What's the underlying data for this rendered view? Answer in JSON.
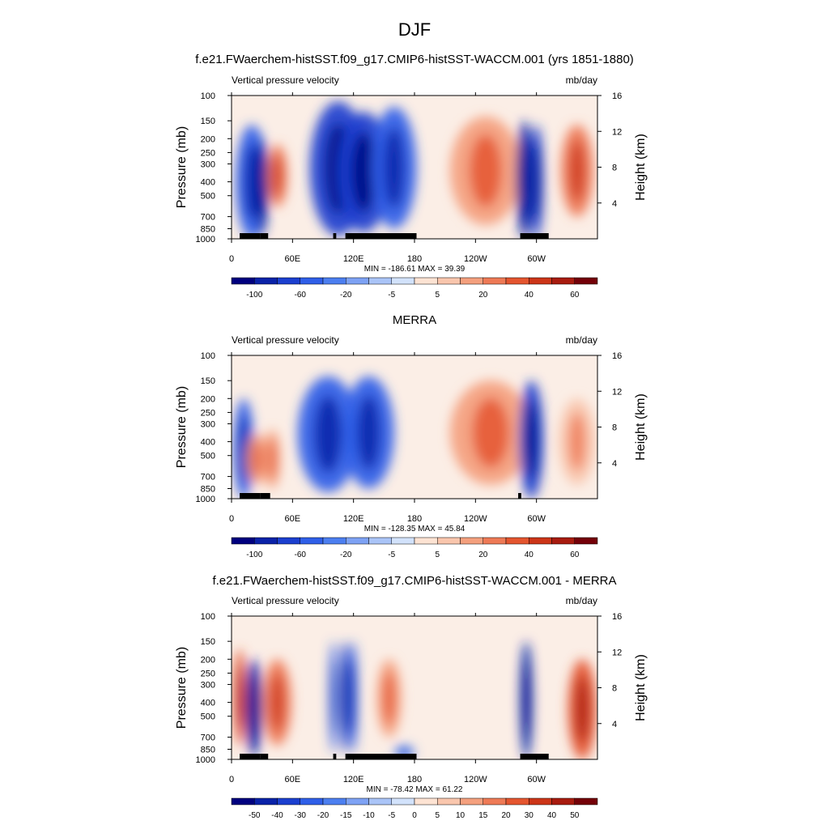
{
  "figure": {
    "title": "DJF"
  },
  "chart_data": [
    {
      "type": "heatmap",
      "title": "f.e21.FWaerchem-histSST.f09_g17.CMIP6-histSST-WACCM.001 (yrs 1851-1880)",
      "left_label": "Vertical pressure velocity",
      "right_label": "mb/day",
      "ylabel": "Pressure (mb)",
      "ylabel_right": "Height (km)",
      "x_ticks": [
        "0",
        "60E",
        "120E",
        "180",
        "120W",
        "60W"
      ],
      "x_tick_values": [
        0,
        60,
        120,
        180,
        240,
        300
      ],
      "xlim": [
        0,
        360
      ],
      "y_ticks": [
        "100",
        "150",
        "200",
        "250",
        "300",
        "400",
        "500",
        "700",
        "850",
        "1000"
      ],
      "y_tick_values": [
        100,
        150,
        200,
        250,
        300,
        400,
        500,
        700,
        850,
        1000
      ],
      "ylim": [
        1000,
        100
      ],
      "height_ticks": [
        "16",
        "12",
        "8",
        "4"
      ],
      "height_tick_values": [
        16,
        12,
        8,
        4
      ],
      "stats": "MIN = -186.61  MAX =  39.39",
      "colorbar_labels": [
        "-100",
        "-60",
        "-20",
        "-5",
        "5",
        "20",
        "40",
        "60"
      ],
      "colorbar_colors": [
        "#00007f",
        "#0a22a8",
        "#1b3fcf",
        "#2f5fe8",
        "#4c7ff0",
        "#7ea2f4",
        "#aac4f7",
        "#d2e2fb",
        "#fde3d3",
        "#f9c6ad",
        "#f4a07e",
        "#ee7a56",
        "#e4552f",
        "#cc3518",
        "#a81b0f",
        "#740008"
      ],
      "features": [
        {
          "lon": 20,
          "p0": 160,
          "p1": 1000,
          "w": 16,
          "v": -5
        },
        {
          "lon": 30,
          "p0": 200,
          "p1": 950,
          "w": 6,
          "v": -7
        },
        {
          "lon": 45,
          "p0": 220,
          "p1": 600,
          "w": 10,
          "v": 4
        },
        {
          "lon": 105,
          "p0": 110,
          "p1": 950,
          "w": 28,
          "v": -6
        },
        {
          "lon": 130,
          "p0": 130,
          "p1": 900,
          "w": 26,
          "v": -6
        },
        {
          "lon": 160,
          "p0": 120,
          "p1": 850,
          "w": 22,
          "v": -5
        },
        {
          "lon": 250,
          "p0": 140,
          "p1": 800,
          "w": 35,
          "v": 3
        },
        {
          "lon": 288,
          "p0": 150,
          "p1": 1000,
          "w": 8,
          "v": -7
        },
        {
          "lon": 300,
          "p0": 160,
          "p1": 1000,
          "w": 7,
          "v": -6
        },
        {
          "lon": 340,
          "p0": 160,
          "p1": 700,
          "w": 16,
          "v": 4
        }
      ],
      "topography": [
        [
          8,
          28
        ],
        [
          28,
          36
        ],
        [
          100,
          103
        ],
        [
          112,
          182
        ],
        [
          284,
          312
        ]
      ]
    },
    {
      "type": "heatmap",
      "title": "MERRA",
      "left_label": "Vertical pressure velocity",
      "right_label": "mb/day",
      "ylabel": "Pressure (mb)",
      "ylabel_right": "Height (km)",
      "x_ticks": [
        "0",
        "60E",
        "120E",
        "180",
        "120W",
        "60W"
      ],
      "x_tick_values": [
        0,
        60,
        120,
        180,
        240,
        300
      ],
      "xlim": [
        0,
        360
      ],
      "y_ticks": [
        "100",
        "150",
        "200",
        "250",
        "300",
        "400",
        "500",
        "700",
        "850",
        "1000"
      ],
      "y_tick_values": [
        100,
        150,
        200,
        250,
        300,
        400,
        500,
        700,
        850,
        1000
      ],
      "ylim": [
        1000,
        100
      ],
      "height_ticks": [
        "16",
        "12",
        "8",
        "4"
      ],
      "height_tick_values": [
        16,
        12,
        8,
        4
      ],
      "stats": "MIN = -128.35  MAX =  45.84",
      "colorbar_labels": [
        "-100",
        "-60",
        "-20",
        "-5",
        "5",
        "20",
        "40",
        "60"
      ],
      "colorbar_colors": [
        "#00007f",
        "#0a22a8",
        "#1b3fcf",
        "#2f5fe8",
        "#4c7ff0",
        "#7ea2f4",
        "#aac4f7",
        "#d2e2fb",
        "#fde3d3",
        "#f9c6ad",
        "#f4a07e",
        "#ee7a56",
        "#e4552f",
        "#cc3518",
        "#a81b0f",
        "#740008"
      ],
      "features": [
        {
          "lon": 12,
          "p0": 200,
          "p1": 1000,
          "w": 10,
          "v": -5
        },
        {
          "lon": 25,
          "p0": 350,
          "p1": 800,
          "w": 10,
          "v": 3
        },
        {
          "lon": 40,
          "p0": 330,
          "p1": 850,
          "w": 8,
          "v": 3
        },
        {
          "lon": 95,
          "p0": 140,
          "p1": 900,
          "w": 30,
          "v": -5
        },
        {
          "lon": 135,
          "p0": 140,
          "p1": 850,
          "w": 25,
          "v": -5
        },
        {
          "lon": 255,
          "p0": 150,
          "p1": 800,
          "w": 40,
          "v": 3
        },
        {
          "lon": 295,
          "p0": 150,
          "p1": 1000,
          "w": 12,
          "v": -6
        },
        {
          "lon": 340,
          "p0": 200,
          "p1": 800,
          "w": 18,
          "v": 2
        }
      ],
      "topography": [
        [
          8,
          28
        ],
        [
          28,
          38
        ],
        [
          282,
          285
        ]
      ]
    },
    {
      "type": "heatmap",
      "title": "f.e21.FWaerchem-histSST.f09_g17.CMIP6-histSST-WACCM.001 - MERRA",
      "left_label": "Vertical pressure velocity",
      "right_label": "mb/day",
      "ylabel": "Pressure (mb)",
      "ylabel_right": "Height (km)",
      "x_ticks": [
        "0",
        "60E",
        "120E",
        "180",
        "120W",
        "60W"
      ],
      "x_tick_values": [
        0,
        60,
        120,
        180,
        240,
        300
      ],
      "xlim": [
        0,
        360
      ],
      "y_ticks": [
        "100",
        "150",
        "200",
        "250",
        "300",
        "400",
        "500",
        "700",
        "850",
        "1000"
      ],
      "y_tick_values": [
        100,
        150,
        200,
        250,
        300,
        400,
        500,
        700,
        850,
        1000
      ],
      "ylim": [
        1000,
        100
      ],
      "height_ticks": [
        "16",
        "12",
        "8",
        "4"
      ],
      "height_tick_values": [
        16,
        12,
        8,
        4
      ],
      "stats": "MIN = -78.42  MAX =  61.22",
      "colorbar_labels": [
        "-50",
        "-40",
        "-30",
        "-20",
        "-15",
        "-10",
        "-5",
        "0",
        "5",
        "10",
        "15",
        "20",
        "30",
        "40",
        "50"
      ],
      "colorbar_colors": [
        "#00007f",
        "#0a22a8",
        "#1b3fcf",
        "#2f5fe8",
        "#4c7ff0",
        "#7ea2f4",
        "#aac4f7",
        "#d2e2fb",
        "#fde3d3",
        "#f9c6ad",
        "#f4a07e",
        "#ee7a56",
        "#e4552f",
        "#cc3518",
        "#a81b0f",
        "#740008"
      ],
      "features": [
        {
          "lon": 8,
          "p0": 170,
          "p1": 800,
          "w": 6,
          "v": 5
        },
        {
          "lon": 22,
          "p0": 200,
          "p1": 950,
          "w": 8,
          "v": -7
        },
        {
          "lon": 45,
          "p0": 200,
          "p1": 800,
          "w": 14,
          "v": 4
        },
        {
          "lon": 100,
          "p0": 150,
          "p1": 900,
          "w": 4,
          "v": -5
        },
        {
          "lon": 112,
          "p0": 150,
          "p1": 900,
          "w": 5,
          "v": -6
        },
        {
          "lon": 120,
          "p0": 150,
          "p1": 900,
          "w": 4,
          "v": -5
        },
        {
          "lon": 155,
          "p0": 200,
          "p1": 700,
          "w": 12,
          "v": 3
        },
        {
          "lon": 170,
          "p0": 800,
          "p1": 1000,
          "w": 10,
          "v": -4
        },
        {
          "lon": 290,
          "p0": 150,
          "p1": 1000,
          "w": 6,
          "v": -7
        },
        {
          "lon": 345,
          "p0": 200,
          "p1": 1000,
          "w": 14,
          "v": 5
        }
      ],
      "topography": [
        [
          8,
          28
        ],
        [
          28,
          36
        ],
        [
          100,
          103
        ],
        [
          112,
          182
        ],
        [
          284,
          312
        ]
      ]
    }
  ]
}
